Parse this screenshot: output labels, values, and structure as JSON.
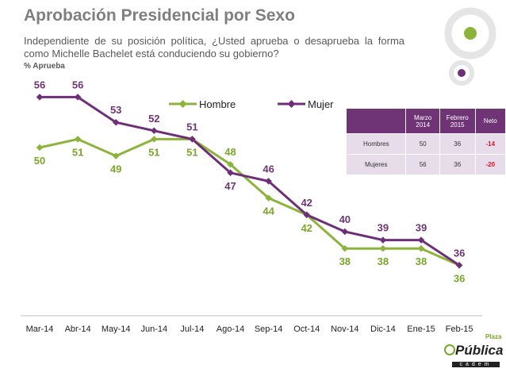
{
  "header": {
    "title": "Aprobación Presidencial por Sexo",
    "subtitle": "Independiente de su posición política, ¿Usted aprueba o desaprueba la forma como Michelle Bachelet está conduciendo su gobierno?",
    "note": "% Aprueba"
  },
  "colors": {
    "hombre": "#8cb43a",
    "mujer": "#6f2f78",
    "negative": "#e0121f"
  },
  "chart_data": {
    "type": "line",
    "title": "",
    "categories": [
      "Mar-14",
      "Abr-14",
      "May-14",
      "Jun-14",
      "Jul-14",
      "Ago-14",
      "Sep-14",
      "Oct-14",
      "Nov-14",
      "Dic-14",
      "Ene-15",
      "Feb-15"
    ],
    "series": [
      {
        "name": "Hombre",
        "values": [
          50,
          51,
          49,
          51,
          51,
          48,
          44,
          42,
          38,
          38,
          38,
          36
        ]
      },
      {
        "name": "Mujer",
        "values": [
          56,
          56,
          53,
          52,
          51,
          47,
          46,
          42,
          40,
          39,
          39,
          36
        ]
      }
    ],
    "ylim": [
      30,
      60
    ],
    "legend": "top-center"
  },
  "table": {
    "headers": [
      "",
      "Marzo 2014",
      "Febrero 2015",
      "Neto"
    ],
    "rows": [
      {
        "label": "Hombres",
        "marzo": "50",
        "febrero": "36",
        "neto": "-14"
      },
      {
        "label": "Mujeres",
        "marzo": "56",
        "febrero": "36",
        "neto": "-20"
      }
    ]
  },
  "logo": {
    "plaza": "Plaza",
    "name": "Pública",
    "domain": "cadem"
  }
}
